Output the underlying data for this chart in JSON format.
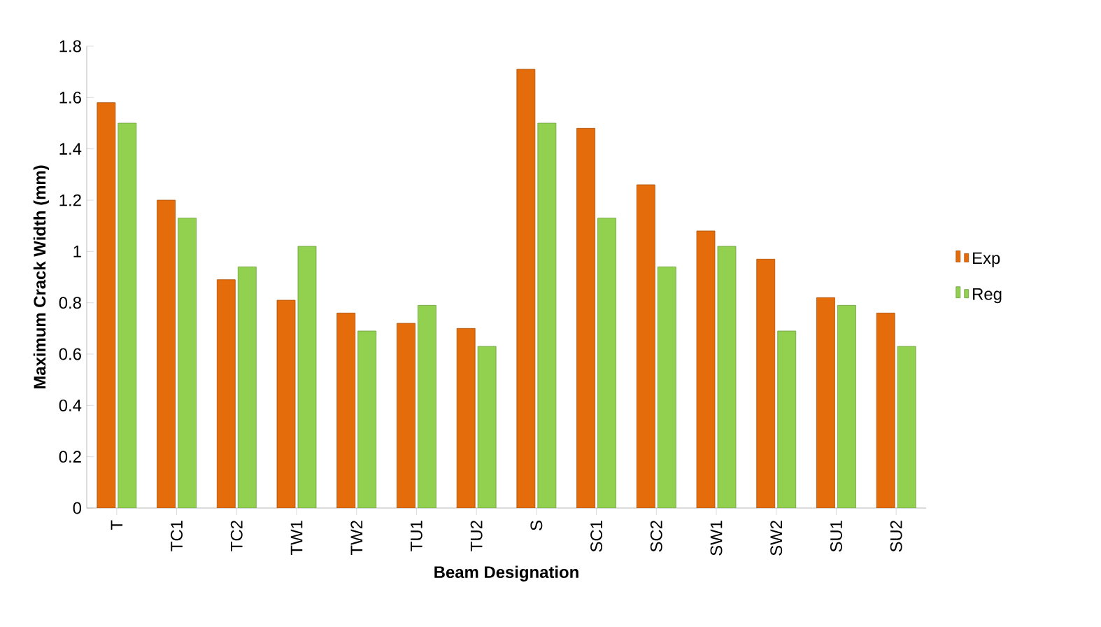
{
  "chart_data": {
    "type": "bar",
    "xlabel": "Beam Designation",
    "ylabel": "Maximum Crack Width (mm)",
    "categories": [
      "T",
      "TC1",
      "TC2",
      "TW1",
      "TW2",
      "TU1",
      "TU2",
      "S",
      "SC1",
      "SC2",
      "SW1",
      "SW2",
      "SU1",
      "SU2"
    ],
    "series": [
      {
        "name": "Exp",
        "color": "#e46c0a",
        "values": [
          1.58,
          1.2,
          0.89,
          0.81,
          0.76,
          0.72,
          0.7,
          1.71,
          1.48,
          1.26,
          1.08,
          0.97,
          0.82,
          0.76
        ]
      },
      {
        "name": "Reg",
        "color": "#92d050",
        "values": [
          1.5,
          1.13,
          0.94,
          1.02,
          0.69,
          0.79,
          0.63,
          1.5,
          1.13,
          0.94,
          1.02,
          0.69,
          0.79,
          0.63
        ]
      }
    ],
    "ylim": [
      0,
      1.8
    ],
    "yticks": [
      0,
      0.2,
      0.4,
      0.6,
      0.8,
      1,
      1.2,
      1.4,
      1.6,
      1.8
    ],
    "grid": false,
    "legend": "right"
  }
}
